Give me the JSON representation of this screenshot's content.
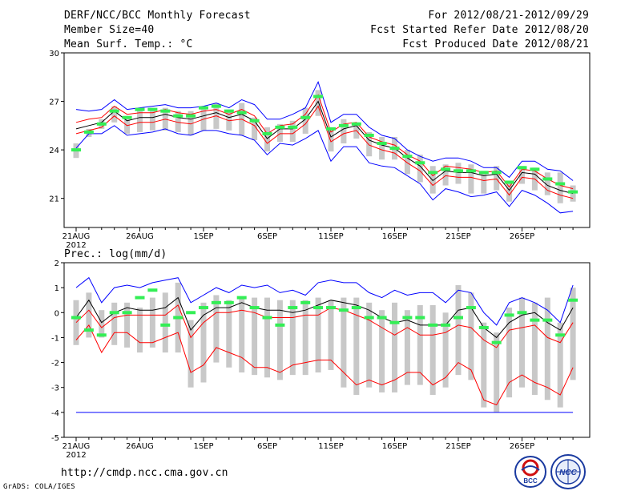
{
  "header": {
    "title": "DERF/NCC/BCC Monthly Forecast",
    "member_size": "Member Size=40",
    "variable_top": "Mean Surf. Temp.: °C",
    "period": "For 2012/08/21-2012/09/29",
    "started": "Fcst Started Refer Date 2012/08/20",
    "produced": "Fcst Produced Date 2012/08/21"
  },
  "footer": {
    "url": "http://cmdp.ncc.cma.gov.cn",
    "credit": "GrADS: COLA/IGES",
    "logo_left": "BCC",
    "logo_right": "NCC"
  },
  "colors": {
    "envelope": "#0000ff",
    "members": "#ff0000",
    "mean": "#000000",
    "observed": "#33ee55",
    "spread": "#c8c8c8"
  },
  "x_ticks": [
    "21AUG",
    "26AUG",
    "1SEP",
    "6SEP",
    "11SEP",
    "16SEP",
    "21SEP",
    "26SEP"
  ],
  "x_year": "2012",
  "chart_data": [
    {
      "type": "line",
      "title": "Mean Surf. Temp.: °C",
      "ylim": [
        19.2,
        30
      ],
      "yticks": [
        21,
        24,
        27,
        30
      ],
      "x_days": 40,
      "series": [
        {
          "name": "max",
          "values": [
            26.5,
            26.4,
            26.5,
            27.1,
            26.5,
            26.6,
            26.7,
            26.8,
            26.6,
            26.6,
            26.7,
            26.9,
            26.6,
            27.1,
            26.8,
            25.9,
            25.9,
            26.2,
            26.6,
            28.2,
            25.7,
            26.2,
            26.2,
            25.4,
            24.9,
            24.7,
            24.0,
            23.6,
            23.3,
            23.5,
            23.5,
            23.3,
            22.9,
            22.9,
            22.3,
            23.3,
            23.3,
            22.8,
            22.7,
            22.1
          ]
        },
        {
          "name": "upper",
          "values": [
            25.7,
            25.9,
            26.0,
            26.7,
            26.2,
            26.3,
            26.3,
            26.5,
            26.3,
            26.2,
            26.4,
            26.5,
            26.2,
            26.5,
            26.1,
            25.0,
            25.5,
            25.6,
            26.2,
            27.4,
            25.1,
            25.6,
            25.7,
            24.8,
            24.5,
            24.3,
            23.7,
            23.3,
            22.4,
            23.0,
            22.9,
            22.8,
            22.6,
            22.7,
            21.7,
            22.8,
            22.7,
            22.2,
            21.8,
            21.6
          ]
        },
        {
          "name": "mean",
          "values": [
            25.3,
            25.5,
            25.7,
            26.4,
            25.8,
            26.0,
            26.0,
            26.2,
            26.0,
            25.9,
            26.1,
            26.3,
            26.0,
            26.2,
            25.8,
            24.7,
            25.3,
            25.3,
            25.9,
            27.0,
            24.8,
            25.3,
            25.5,
            24.6,
            24.3,
            24.1,
            23.5,
            23.0,
            22.1,
            22.7,
            22.6,
            22.6,
            22.4,
            22.5,
            21.5,
            22.6,
            22.5,
            21.8,
            21.5,
            21.3
          ]
        },
        {
          "name": "lower",
          "values": [
            25.0,
            25.2,
            25.4,
            26.1,
            25.5,
            25.7,
            25.7,
            25.9,
            25.7,
            25.6,
            25.9,
            26.1,
            25.8,
            25.9,
            25.5,
            24.4,
            25.0,
            25.0,
            25.6,
            26.7,
            24.5,
            25.0,
            25.2,
            24.3,
            24.0,
            23.8,
            23.2,
            22.7,
            21.8,
            22.4,
            22.3,
            22.3,
            22.1,
            22.2,
            21.2,
            22.3,
            22.2,
            21.5,
            21.2,
            21.0
          ]
        },
        {
          "name": "min",
          "values": [
            24.1,
            25.0,
            25.0,
            25.5,
            24.9,
            25.0,
            25.1,
            25.3,
            25.0,
            24.9,
            25.2,
            25.2,
            25.0,
            24.9,
            24.6,
            23.7,
            24.4,
            24.3,
            24.7,
            25.2,
            23.3,
            24.2,
            24.2,
            23.2,
            23.0,
            22.9,
            22.4,
            21.9,
            20.9,
            21.6,
            21.4,
            21.1,
            21.2,
            21.4,
            20.5,
            21.5,
            21.2,
            20.7,
            20.1,
            20.2
          ]
        },
        {
          "name": "observed",
          "values": [
            24.0,
            25.1,
            25.6,
            26.4,
            26.0,
            26.5,
            26.5,
            26.4,
            26.1,
            26.1,
            26.6,
            26.7,
            26.4,
            26.3,
            25.8,
            25.0,
            25.4,
            25.4,
            26.0,
            27.3,
            25.3,
            25.5,
            25.6,
            24.9,
            24.4,
            24.1,
            23.6,
            23.2,
            22.6,
            22.8,
            22.7,
            22.7,
            22.6,
            22.6,
            22.0,
            22.9,
            22.8,
            22.2,
            21.9,
            21.4
          ]
        },
        {
          "name": "spread_high",
          "values": [
            24.4,
            25.3,
            25.9,
            26.7,
            26.1,
            26.5,
            26.6,
            26.6,
            26.4,
            26.4,
            26.6,
            26.9,
            26.5,
            26.9,
            26.0,
            25.4,
            25.6,
            25.8,
            26.6,
            27.7,
            25.3,
            25.9,
            25.7,
            25.1,
            24.8,
            24.8,
            24.0,
            23.7,
            23.0,
            23.1,
            23.2,
            23.1,
            22.7,
            23.0,
            22.1,
            23.0,
            22.9,
            22.6,
            22.6,
            21.8
          ]
        },
        {
          "name": "spread_low",
          "values": [
            23.5,
            24.8,
            25.3,
            25.7,
            25.0,
            25.1,
            25.2,
            25.2,
            25.1,
            24.9,
            25.2,
            25.3,
            25.2,
            24.9,
            24.6,
            23.9,
            24.5,
            24.5,
            25.0,
            26.1,
            23.9,
            24.4,
            24.7,
            23.6,
            23.4,
            23.4,
            22.5,
            22.0,
            21.3,
            21.8,
            21.9,
            21.3,
            21.3,
            21.5,
            20.8,
            21.9,
            21.5,
            21.2,
            20.7,
            20.8
          ]
        }
      ]
    },
    {
      "type": "line",
      "title": "Prec.: log(mm/d)",
      "ylim": [
        -5,
        2
      ],
      "yticks": [
        -5,
        -4,
        -3,
        -2,
        -1,
        0,
        1,
        2
      ],
      "x_days": 40,
      "series": [
        {
          "name": "max",
          "values": [
            1.0,
            1.4,
            0.4,
            1.0,
            1.1,
            1.0,
            1.2,
            1.3,
            1.4,
            0.4,
            0.7,
            1.0,
            0.8,
            1.1,
            1.0,
            1.1,
            0.8,
            0.9,
            0.7,
            1.2,
            1.3,
            1.2,
            1.2,
            0.8,
            0.6,
            0.9,
            0.7,
            0.8,
            0.8,
            0.4,
            0.9,
            0.8,
            0.0,
            -0.5,
            0.4,
            0.6,
            0.4,
            0.1,
            -0.4,
            1.1
          ]
        },
        {
          "name": "mean",
          "values": [
            -0.2,
            0.5,
            -0.4,
            0.0,
            0.2,
            0.1,
            0.1,
            0.2,
            0.6,
            -0.7,
            -0.1,
            0.2,
            0.2,
            0.4,
            0.2,
            0.1,
            0.1,
            0.0,
            0.1,
            0.3,
            0.5,
            0.4,
            0.3,
            0.1,
            -0.2,
            -0.4,
            -0.3,
            -0.5,
            -0.5,
            -0.5,
            0.1,
            0.2,
            -0.6,
            -1.0,
            -0.4,
            -0.1,
            0.0,
            -0.4,
            -0.7,
            0.2
          ]
        },
        {
          "name": "upper",
          "values": [
            -0.4,
            0.1,
            -0.6,
            -0.2,
            -0.1,
            -0.1,
            -0.1,
            -0.1,
            0.3,
            -1.0,
            -0.4,
            0.0,
            0.0,
            0.1,
            0.0,
            -0.2,
            -0.2,
            -0.2,
            -0.1,
            -0.1,
            0.2,
            0.1,
            -0.1,
            -0.3,
            -0.6,
            -0.9,
            -0.6,
            -0.9,
            -0.9,
            -0.8,
            -0.5,
            -0.6,
            -1.1,
            -1.4,
            -0.7,
            -0.6,
            -0.5,
            -1.0,
            -1.2,
            -0.4
          ]
        },
        {
          "name": "lower",
          "values": [
            -1.1,
            -0.5,
            -1.6,
            -0.8,
            -0.8,
            -1.2,
            -1.2,
            -1.0,
            -0.8,
            -2.4,
            -2.1,
            -1.4,
            -1.6,
            -1.8,
            -2.2,
            -2.2,
            -2.4,
            -2.1,
            -2.0,
            -1.9,
            -1.9,
            -2.4,
            -2.9,
            -2.7,
            -2.9,
            -2.7,
            -2.4,
            -2.4,
            -2.9,
            -2.6,
            -2.0,
            -2.3,
            -3.5,
            -3.7,
            -2.8,
            -2.5,
            -2.8,
            -3.0,
            -3.3,
            -2.2
          ]
        },
        {
          "name": "min",
          "values": [
            -4,
            -4,
            -4,
            -4,
            -4,
            -4,
            -4,
            -4,
            -4,
            -4,
            -4,
            -4,
            -4,
            -4,
            -4,
            -4,
            -4,
            -4,
            -4,
            -4,
            -4,
            -4,
            -4,
            -4,
            -4,
            -4,
            -4,
            -4,
            -4,
            -4,
            -4,
            -4,
            -4,
            -4,
            -4,
            -4,
            -4,
            -4,
            -4,
            -4
          ]
        },
        {
          "name": "observed",
          "values": [
            -0.2,
            -0.7,
            -0.9,
            0.0,
            0.0,
            0.6,
            0.9,
            -0.5,
            -0.2,
            0.0,
            0.2,
            0.4,
            0.4,
            0.6,
            0.2,
            -0.2,
            -0.5,
            0.2,
            0.4,
            0.2,
            0.2,
            0.1,
            0.2,
            -0.2,
            -0.2,
            -0.4,
            -0.2,
            -0.2,
            -0.5,
            -0.5,
            -0.2,
            0.2,
            -0.6,
            -1.2,
            -0.1,
            0.0,
            -0.3,
            -0.3,
            -0.9,
            0.5
          ]
        },
        {
          "name": "spread_high",
          "values": [
            0.5,
            0.8,
            0.1,
            0.4,
            0.4,
            0.2,
            0.6,
            0.8,
            1.2,
            -0.3,
            0.4,
            0.7,
            0.5,
            0.6,
            0.6,
            0.6,
            0.5,
            0.5,
            0.5,
            0.6,
            0.5,
            0.6,
            0.6,
            0.4,
            0.1,
            0.4,
            0.1,
            0.3,
            0.3,
            0.0,
            1.1,
            0.8,
            -0.4,
            -0.8,
            0.2,
            0.6,
            0.4,
            0.6,
            -0.4,
            1.0
          ]
        },
        {
          "name": "spread_low",
          "values": [
            -1.3,
            -1.0,
            -1.0,
            -1.3,
            -1.4,
            -1.6,
            -1.4,
            -1.6,
            -1.6,
            -3.0,
            -2.8,
            -2.0,
            -2.2,
            -2.4,
            -2.5,
            -2.6,
            -2.7,
            -2.5,
            -2.5,
            -2.4,
            -2.3,
            -3.0,
            -3.3,
            -3.0,
            -3.2,
            -3.2,
            -2.9,
            -2.9,
            -3.3,
            -3.0,
            -2.5,
            -2.7,
            -3.8,
            -4.0,
            -3.4,
            -3.0,
            -3.3,
            -3.5,
            -3.8,
            -2.7
          ]
        }
      ]
    }
  ]
}
